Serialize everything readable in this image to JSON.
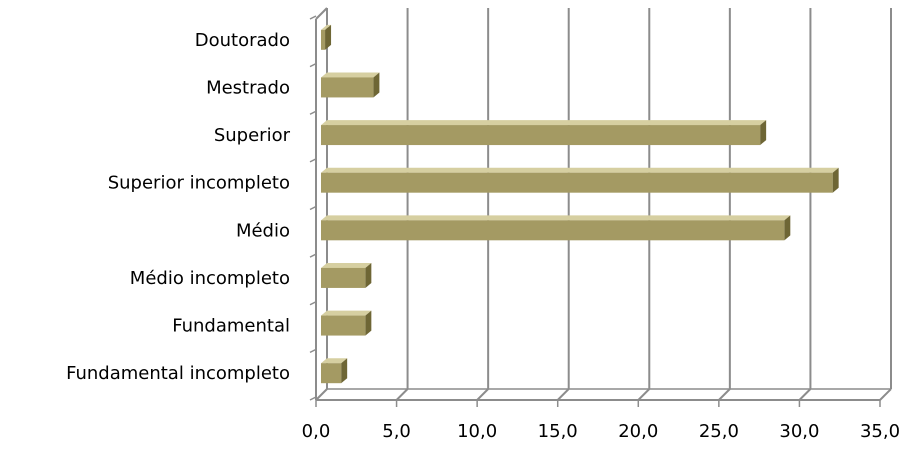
{
  "chart_data": {
    "type": "bar",
    "orientation": "horizontal",
    "style": "3d",
    "categories": [
      "Doutorado",
      "Mestrado",
      "Superior",
      "Superior incompleto",
      "Médio",
      "Médio incompleto",
      "Fundamental",
      "Fundamental incompleto"
    ],
    "values": [
      0.5,
      3.5,
      27.5,
      32.0,
      29.0,
      3.0,
      3.0,
      1.5
    ],
    "x_ticks": [
      "0,0",
      "5,0",
      "10,0",
      "15,0",
      "20,0",
      "25,0",
      "30,0",
      "35,0"
    ],
    "xlim": [
      0,
      35
    ],
    "grid": true,
    "legend": "none",
    "colors": {
      "bar_front": "#a49a63",
      "bar_top": "#d6cfa1",
      "bar_side": "#6e6635",
      "gridline": "#8c8c8c",
      "axis": "#8c8c8c"
    }
  }
}
